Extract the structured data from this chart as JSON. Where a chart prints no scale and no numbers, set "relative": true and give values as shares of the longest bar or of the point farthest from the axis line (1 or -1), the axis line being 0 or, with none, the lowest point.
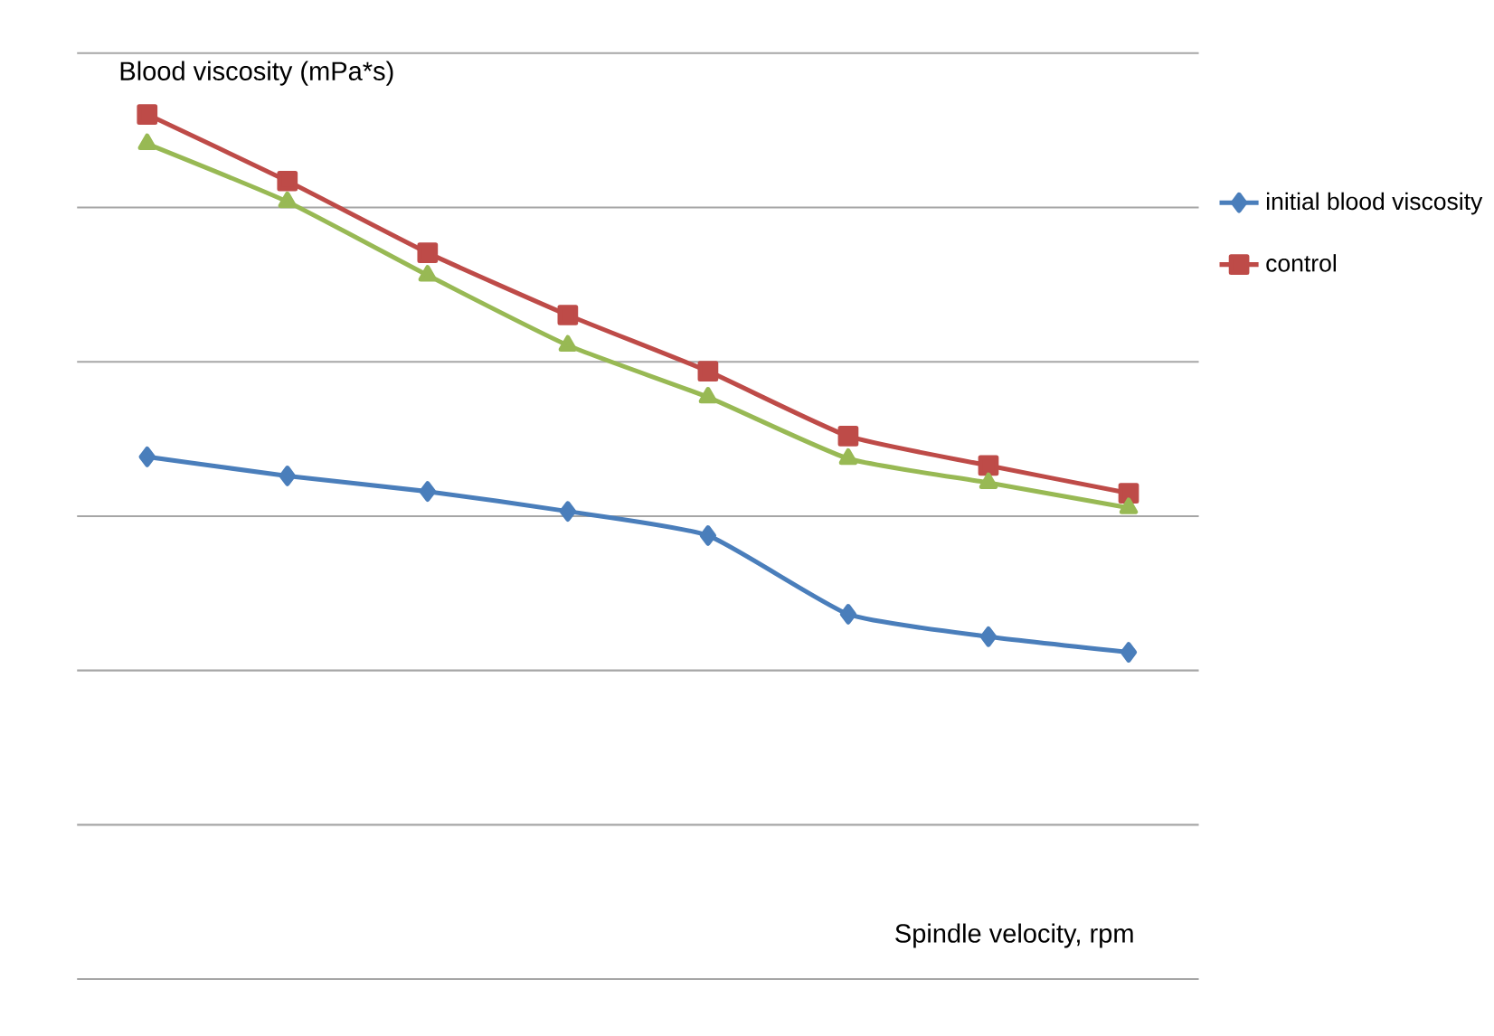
{
  "chart_data": {
    "type": "line",
    "relative": true,
    "ylabel": "Blood viscosity (mPa*s)",
    "xlabel": "Spindle velocity, rpm",
    "categories": [
      null,
      null,
      null,
      null,
      null,
      null,
      null,
      null
    ],
    "grid": "y",
    "legend": "right",
    "tick_labels": false,
    "series": [
      {
        "name": "initial blood viscosity",
        "color": "#4a7ebb",
        "marker": "diamond",
        "values": [
          0.604,
          0.582,
          0.564,
          0.541,
          0.513,
          0.422,
          0.396,
          0.378
        ]
      },
      {
        "name": "control",
        "color": "#be4b48",
        "marker": "square",
        "values": [
          1,
          0.923,
          0.84,
          0.768,
          0.703,
          0.628,
          0.594,
          0.562
        ]
      },
      {
        "color": "#98b954",
        "marker": "triangle",
        "values": [
          0.966,
          0.899,
          0.814,
          0.733,
          0.673,
          0.602,
          0.574,
          0.545
        ]
      }
    ]
  }
}
